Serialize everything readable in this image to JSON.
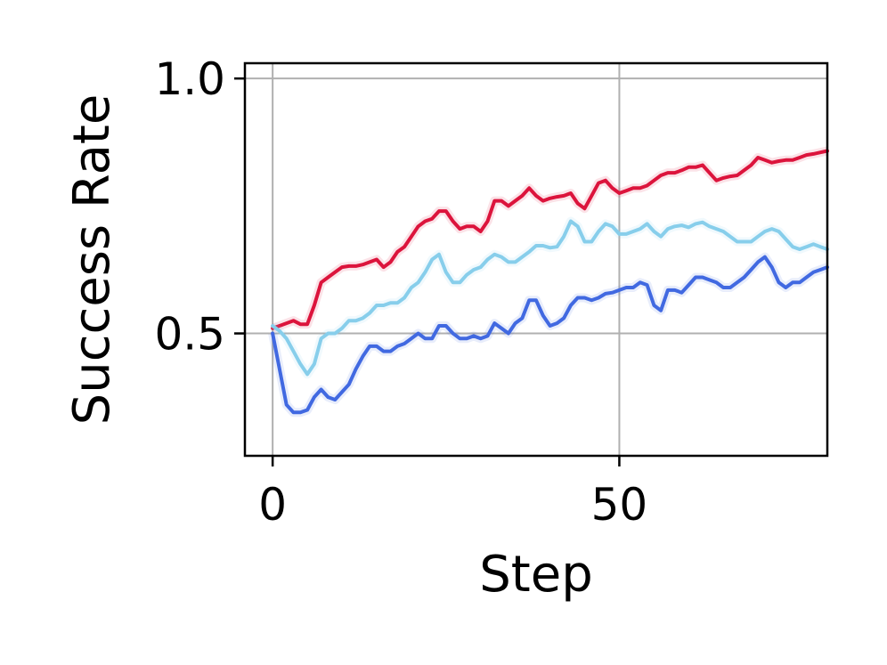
{
  "chart_data": {
    "type": "line",
    "title": "",
    "xlabel": "Step",
    "ylabel": "Success Rate",
    "xlim": [
      -4,
      80
    ],
    "ylim": [
      0.26,
      1.03
    ],
    "xticks": [
      0,
      50
    ],
    "yticks": [
      0.5,
      1.0
    ],
    "xtick_labels": [
      "0",
      "50"
    ],
    "ytick_labels": [
      "0.5",
      "1.0"
    ],
    "grid": true,
    "legend": "none",
    "series": [
      {
        "color": "#dc143c",
        "x": [
          0,
          1,
          2,
          3,
          4,
          5,
          6,
          7,
          8,
          9,
          10,
          11,
          12,
          13,
          14,
          15,
          16,
          17,
          18,
          19,
          20,
          21,
          22,
          23,
          24,
          25,
          26,
          27,
          28,
          29,
          30,
          31,
          32,
          33,
          34,
          35,
          36,
          37,
          38,
          39,
          40,
          41,
          42,
          43,
          44,
          45,
          46,
          47,
          48,
          49,
          50,
          51,
          52,
          53,
          54,
          55,
          56,
          57,
          58,
          59,
          60,
          61,
          62,
          63,
          64,
          65,
          66,
          67,
          68,
          69,
          70,
          71,
          72,
          73,
          74,
          75,
          76,
          77,
          78,
          79,
          80
        ],
        "values": [
          0.51,
          0.515,
          0.52,
          0.525,
          0.518,
          0.518,
          0.555,
          0.6,
          0.61,
          0.62,
          0.63,
          0.632,
          0.632,
          0.635,
          0.64,
          0.645,
          0.63,
          0.64,
          0.66,
          0.67,
          0.69,
          0.71,
          0.72,
          0.725,
          0.74,
          0.74,
          0.72,
          0.705,
          0.71,
          0.71,
          0.7,
          0.72,
          0.76,
          0.76,
          0.75,
          0.76,
          0.77,
          0.785,
          0.77,
          0.76,
          0.765,
          0.768,
          0.77,
          0.775,
          0.755,
          0.745,
          0.77,
          0.795,
          0.8,
          0.785,
          0.775,
          0.78,
          0.785,
          0.785,
          0.79,
          0.8,
          0.81,
          0.815,
          0.815,
          0.82,
          0.826,
          0.826,
          0.83,
          0.815,
          0.8,
          0.805,
          0.808,
          0.81,
          0.82,
          0.83,
          0.845,
          0.84,
          0.835,
          0.838,
          0.84,
          0.84,
          0.845,
          0.85,
          0.852,
          0.855,
          0.858
        ]
      },
      {
        "color": "#87ceeb",
        "x": [
          0,
          1,
          2,
          3,
          4,
          5,
          6,
          7,
          8,
          9,
          10,
          11,
          12,
          13,
          14,
          15,
          16,
          17,
          18,
          19,
          20,
          21,
          22,
          23,
          24,
          25,
          26,
          27,
          28,
          29,
          30,
          31,
          32,
          33,
          34,
          35,
          36,
          37,
          38,
          39,
          40,
          41,
          42,
          43,
          44,
          45,
          46,
          47,
          48,
          49,
          50,
          51,
          52,
          53,
          54,
          55,
          56,
          57,
          58,
          59,
          60,
          61,
          62,
          63,
          64,
          65,
          66,
          67,
          68,
          69,
          70,
          71,
          72,
          73,
          74,
          75,
          76,
          77,
          78,
          79,
          80
        ],
        "values": [
          0.515,
          0.505,
          0.49,
          0.465,
          0.44,
          0.42,
          0.44,
          0.49,
          0.5,
          0.5,
          0.51,
          0.525,
          0.525,
          0.53,
          0.54,
          0.555,
          0.555,
          0.56,
          0.56,
          0.57,
          0.59,
          0.6,
          0.62,
          0.645,
          0.655,
          0.62,
          0.6,
          0.6,
          0.615,
          0.625,
          0.63,
          0.645,
          0.655,
          0.65,
          0.64,
          0.64,
          0.65,
          0.66,
          0.672,
          0.672,
          0.668,
          0.67,
          0.69,
          0.72,
          0.71,
          0.68,
          0.68,
          0.7,
          0.715,
          0.71,
          0.695,
          0.695,
          0.7,
          0.705,
          0.715,
          0.7,
          0.69,
          0.705,
          0.71,
          0.712,
          0.708,
          0.715,
          0.718,
          0.71,
          0.705,
          0.7,
          0.69,
          0.68,
          0.68,
          0.68,
          0.69,
          0.7,
          0.705,
          0.7,
          0.685,
          0.67,
          0.665,
          0.67,
          0.675,
          0.67,
          0.665
        ]
      },
      {
        "color": "#4169e1",
        "x": [
          0,
          1,
          2,
          3,
          4,
          5,
          6,
          7,
          8,
          9,
          10,
          11,
          12,
          13,
          14,
          15,
          16,
          17,
          18,
          19,
          20,
          21,
          22,
          23,
          24,
          25,
          26,
          27,
          28,
          29,
          30,
          31,
          32,
          33,
          34,
          35,
          36,
          37,
          38,
          39,
          40,
          41,
          42,
          43,
          44,
          45,
          46,
          47,
          48,
          49,
          50,
          51,
          52,
          53,
          54,
          55,
          56,
          57,
          58,
          59,
          60,
          61,
          62,
          63,
          64,
          65,
          66,
          67,
          68,
          69,
          70,
          71,
          72,
          73,
          74,
          75,
          76,
          77,
          78,
          79,
          80
        ],
        "values": [
          0.5,
          0.43,
          0.36,
          0.345,
          0.345,
          0.35,
          0.375,
          0.39,
          0.375,
          0.37,
          0.385,
          0.4,
          0.43,
          0.455,
          0.475,
          0.475,
          0.465,
          0.465,
          0.475,
          0.48,
          0.49,
          0.5,
          0.49,
          0.49,
          0.515,
          0.515,
          0.5,
          0.49,
          0.49,
          0.495,
          0.49,
          0.495,
          0.52,
          0.51,
          0.5,
          0.52,
          0.53,
          0.565,
          0.565,
          0.535,
          0.515,
          0.52,
          0.53,
          0.555,
          0.57,
          0.57,
          0.565,
          0.57,
          0.578,
          0.58,
          0.585,
          0.59,
          0.59,
          0.6,
          0.595,
          0.555,
          0.545,
          0.585,
          0.585,
          0.58,
          0.595,
          0.61,
          0.61,
          0.605,
          0.6,
          0.59,
          0.59,
          0.6,
          0.61,
          0.625,
          0.64,
          0.65,
          0.63,
          0.6,
          0.59,
          0.6,
          0.6,
          0.61,
          0.62,
          0.625,
          0.63
        ]
      }
    ]
  }
}
